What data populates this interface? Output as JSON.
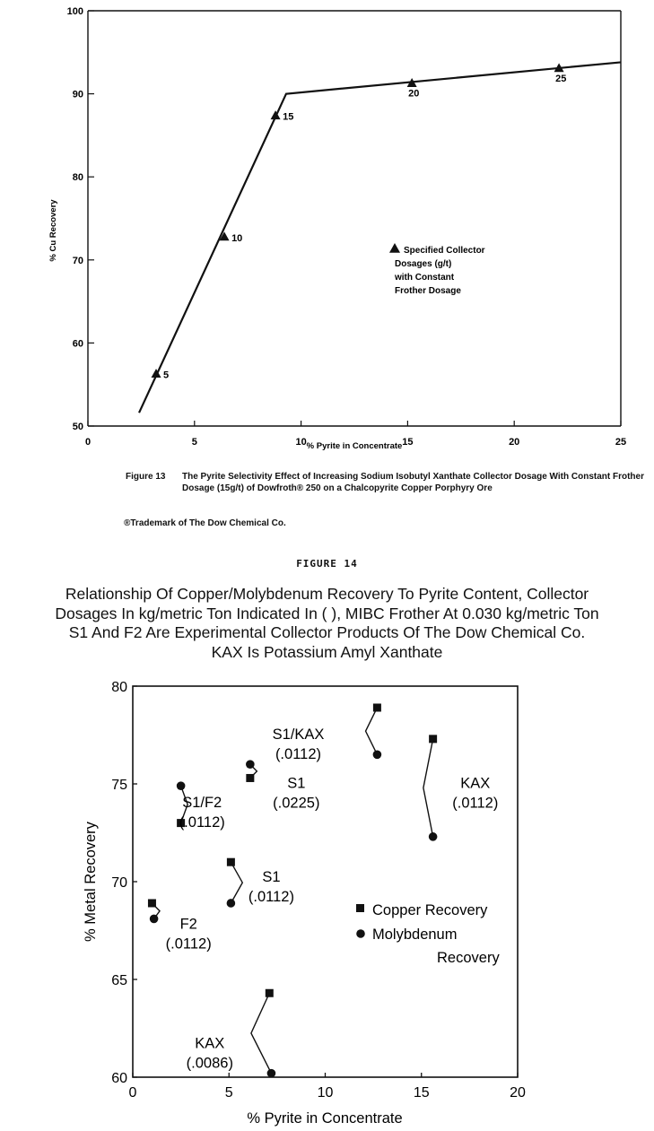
{
  "figure13": {
    "caption_label": "Figure 13",
    "caption_text": "The Pyrite Selectivity Effect of Increasing Sodium Isobutyl Xanthate Collector Dosage With Constant Frother Dosage (15g/t) of Dowfroth® 250 on a Chalcopyrite Copper Porphyry Ore",
    "trademark": "®Trademark of The Dow Chemical Co."
  },
  "figure14": {
    "label": "FIGURE 14",
    "title_lines": [
      "Relationship Of Copper/Molybdenum Recovery To Pyrite Content, Collector",
      "Dosages In kg/metric Ton Indicated In ( ), MIBC Frother At 0.030 kg/metric Ton",
      "S1 And F2 Are Experimental Collector Products Of The Dow Chemical Co.",
      "KAX Is Potassium Amyl Xanthate"
    ]
  },
  "chart_data": [
    {
      "type": "line",
      "xlabel": "% Pyrite in Concentrate",
      "ylabel": "% Cu Recovery",
      "xlim": [
        0,
        25
      ],
      "ylim": [
        50,
        100
      ],
      "xticks": [
        0,
        5,
        10,
        15,
        20,
        25
      ],
      "yticks": [
        50,
        60,
        70,
        80,
        90,
        100
      ],
      "grid": false,
      "curve": [
        [
          2.4,
          51.6
        ],
        [
          9.3,
          90.0
        ],
        [
          25,
          93.8
        ]
      ],
      "points": [
        {
          "x": 3.2,
          "y": 56.3,
          "label": "5"
        },
        {
          "x": 6.4,
          "y": 72.8,
          "label": "10"
        },
        {
          "x": 8.8,
          "y": 87.4,
          "label": "15"
        },
        {
          "x": 15.2,
          "y": 91.3,
          "label": "20"
        },
        {
          "x": 22.1,
          "y": 93.1,
          "label": "25"
        }
      ],
      "legend": {
        "marker": "triangle",
        "lines": [
          "Specified Collector",
          "Dosages (g/t)",
          "with Constant",
          "Frother Dosage"
        ]
      }
    },
    {
      "type": "scatter",
      "xlabel": "% Pyrite in Concentrate",
      "ylabel": "% Metal Recovery",
      "xlim": [
        0,
        20
      ],
      "ylim": [
        60,
        80
      ],
      "xticks": [
        0,
        5,
        10,
        15,
        20
      ],
      "yticks": [
        60,
        65,
        70,
        75,
        80
      ],
      "grid": false,
      "series": [
        {
          "name": "Copper Recovery",
          "marker": "square",
          "points": [
            [
              1.0,
              68.9
            ],
            [
              2.5,
              73.0
            ],
            [
              5.1,
              71.0
            ],
            [
              6.1,
              75.3
            ],
            [
              12.7,
              78.9
            ],
            [
              15.6,
              77.3
            ],
            [
              7.1,
              64.3
            ]
          ]
        },
        {
          "name": "Molybdenum Recovery",
          "marker": "circle",
          "points": [
            [
              1.1,
              68.1
            ],
            [
              2.5,
              74.9
            ],
            [
              5.1,
              68.9
            ],
            [
              6.1,
              76.0
            ],
            [
              12.7,
              76.5
            ],
            [
              15.6,
              72.3
            ],
            [
              7.2,
              60.2
            ]
          ]
        }
      ],
      "annotations": [
        {
          "lines": [
            "F2",
            "(.0112)"
          ]
        },
        {
          "lines": [
            "S1/F2",
            "(.0112)"
          ]
        },
        {
          "lines": [
            "S1",
            "(.0112)"
          ]
        },
        {
          "lines": [
            "S1",
            "(.0225)"
          ]
        },
        {
          "lines": [
            "S1/KAX",
            "(.0112)"
          ]
        },
        {
          "lines": [
            "KAX",
            "(.0112)"
          ]
        },
        {
          "lines": [
            "KAX",
            "(.0086)"
          ]
        }
      ],
      "legend": {
        "position": "right",
        "entries": [
          "Copper Recovery",
          "Molybdenum",
          "Recovery"
        ]
      }
    }
  ]
}
